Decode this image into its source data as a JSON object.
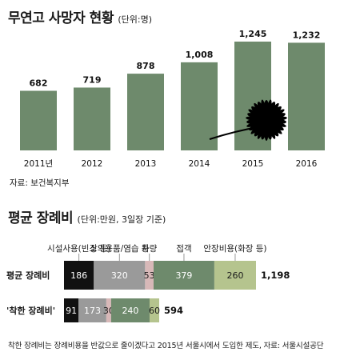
{
  "chart1": {
    "title": "무연고 사망자 현황",
    "unit": "(단위:명)",
    "source": "자료: 보건복지부",
    "bar_color": "#6e8a6c",
    "icon": "chrysanthemum-flower-icon"
  },
  "chart2": {
    "title": "평균 장례비",
    "unit": "(단위:만원, 3일장 기준)",
    "footnote": "착한 장례비는 장례비용을 반값으로 줄이겠다고 2015년 서울시에서 도입한 제도, 자료: 서울시설공단"
  },
  "chart_data": [
    {
      "type": "bar",
      "title": "무연고 사망자 현황",
      "unit": "(단위:명)",
      "categories": [
        "2011년",
        "2012",
        "2013",
        "2014",
        "2015",
        "2016"
      ],
      "values": [
        682,
        719,
        878,
        1008,
        1245,
        1232
      ],
      "value_labels": [
        "682",
        "719",
        "878",
        "1,008",
        "1,245",
        "1,232"
      ],
      "ylim": [
        0,
        1300
      ],
      "grid": false,
      "colors": {
        "bar": "#6e8a6c"
      }
    },
    {
      "type": "bar",
      "orientation": "horizontal-stacked",
      "title": "평균 장례비",
      "unit": "(단위:만원, 3일장 기준)",
      "categories": [
        "평균 장례비",
        "'착한 장례비'"
      ],
      "totals": [
        "1,198",
        "594"
      ],
      "series": [
        {
          "name": "시설사용(빈소 등)",
          "values": [
            186,
            91
          ],
          "color": "#111111"
        },
        {
          "name": "장의용품/염습 등",
          "values": [
            320,
            173
          ],
          "color": "#9a9a9a"
        },
        {
          "name": "차량",
          "values": [
            53,
            30
          ],
          "color": "#d8b8b8"
        },
        {
          "name": "접객",
          "values": [
            379,
            240
          ],
          "color": "#6e8a6c"
        },
        {
          "name": "안장비용(화장 등)",
          "values": [
            260,
            60
          ],
          "color": "#b5c48e"
        }
      ]
    }
  ]
}
